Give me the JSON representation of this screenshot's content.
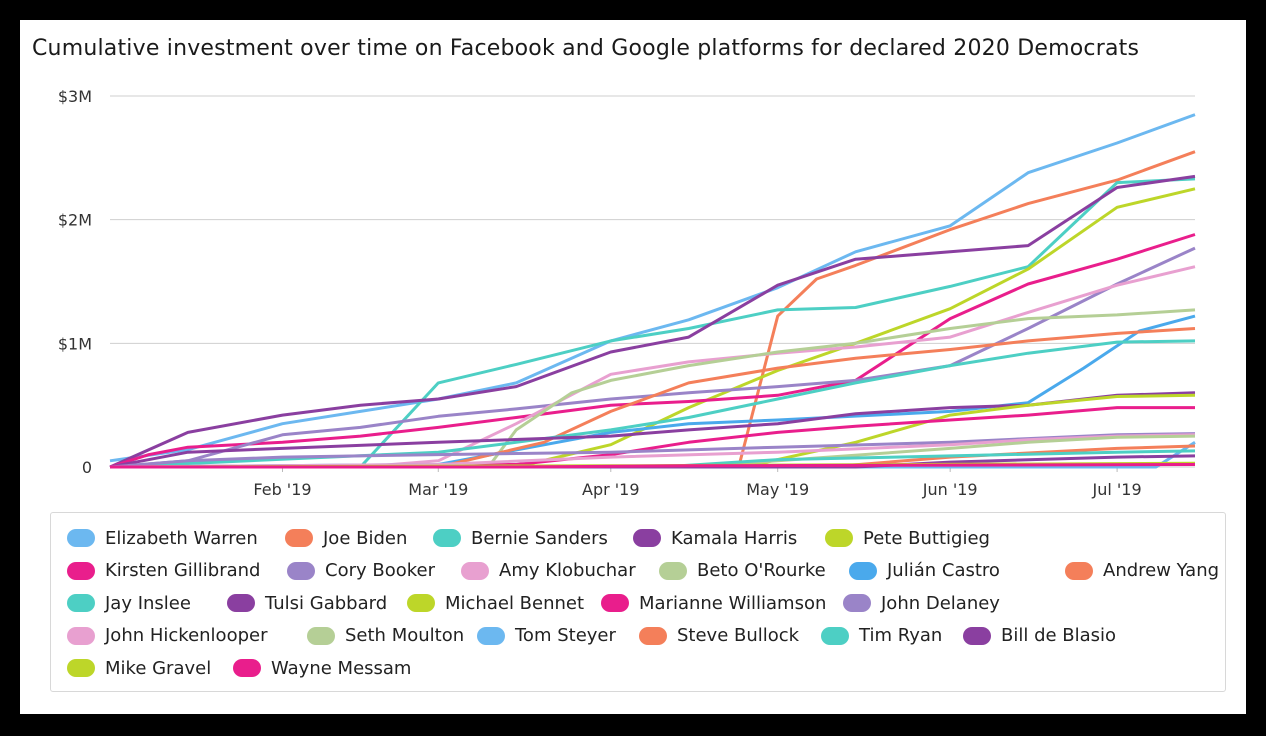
{
  "chart_data": {
    "type": "line",
    "title": "Cumulative investment over time on Facebook and Google platforms for declared 2020 Democrats",
    "x_ticks": [
      "Feb '19",
      "Mar '19",
      "Apr '19",
      "May '19",
      "Jun '19",
      "Jul '19"
    ],
    "y_ticks": [
      "0",
      "$1M",
      "$2M",
      "$3M"
    ],
    "ylim": [
      0,
      3000000
    ],
    "xlim": [
      "2019-01-01",
      "2019-07-15"
    ],
    "grid": "horizontal",
    "legend_position": "bottom",
    "series": [
      {
        "name": "Elizabeth Warren",
        "color": "#6cb8f0",
        "points": [
          [
            "2019-01-01",
            0.05
          ],
          [
            "2019-01-15",
            0.14
          ],
          [
            "2019-02-01",
            0.35
          ],
          [
            "2019-02-15",
            0.45
          ],
          [
            "2019-03-01",
            0.55
          ],
          [
            "2019-03-15",
            0.68
          ],
          [
            "2019-04-01",
            1.02
          ],
          [
            "2019-04-15",
            1.19
          ],
          [
            "2019-05-01",
            1.45
          ],
          [
            "2019-05-15",
            1.74
          ],
          [
            "2019-06-01",
            1.95
          ],
          [
            "2019-06-15",
            2.38
          ],
          [
            "2019-07-01",
            2.62
          ],
          [
            "2019-07-15",
            2.85
          ]
        ]
      },
      {
        "name": "Joe Biden",
        "color": "#f47f5a",
        "points": [
          [
            "2019-04-24",
            0
          ],
          [
            "2019-05-01",
            1.22
          ],
          [
            "2019-05-08",
            1.52
          ],
          [
            "2019-05-15",
            1.63
          ],
          [
            "2019-06-01",
            1.92
          ],
          [
            "2019-06-15",
            2.13
          ],
          [
            "2019-07-01",
            2.32
          ],
          [
            "2019-07-15",
            2.55
          ]
        ]
      },
      {
        "name": "Bernie Sanders",
        "color": "#4dcfc4",
        "points": [
          [
            "2019-01-01",
            0
          ],
          [
            "2019-02-15",
            0
          ],
          [
            "2019-03-01",
            0.68
          ],
          [
            "2019-03-15",
            0.83
          ],
          [
            "2019-04-01",
            1.02
          ],
          [
            "2019-04-15",
            1.12
          ],
          [
            "2019-05-01",
            1.27
          ],
          [
            "2019-05-15",
            1.29
          ],
          [
            "2019-06-01",
            1.46
          ],
          [
            "2019-06-15",
            1.62
          ],
          [
            "2019-07-01",
            2.3
          ],
          [
            "2019-07-15",
            2.33
          ]
        ]
      },
      {
        "name": "Kamala Harris",
        "color": "#8a3fa0",
        "points": [
          [
            "2019-01-01",
            0
          ],
          [
            "2019-01-15",
            0.28
          ],
          [
            "2019-02-01",
            0.42
          ],
          [
            "2019-02-15",
            0.5
          ],
          [
            "2019-03-01",
            0.55
          ],
          [
            "2019-03-15",
            0.65
          ],
          [
            "2019-04-01",
            0.93
          ],
          [
            "2019-04-15",
            1.05
          ],
          [
            "2019-05-01",
            1.47
          ],
          [
            "2019-05-15",
            1.68
          ],
          [
            "2019-06-01",
            1.74
          ],
          [
            "2019-06-15",
            1.79
          ],
          [
            "2019-07-01",
            2.26
          ],
          [
            "2019-07-15",
            2.35
          ]
        ]
      },
      {
        "name": "Pete Buttigieg",
        "color": "#bdd629",
        "points": [
          [
            "2019-01-01",
            0
          ],
          [
            "2019-03-15",
            0
          ],
          [
            "2019-04-01",
            0.18
          ],
          [
            "2019-04-15",
            0.48
          ],
          [
            "2019-05-01",
            0.78
          ],
          [
            "2019-05-15",
            1.0
          ],
          [
            "2019-06-01",
            1.28
          ],
          [
            "2019-06-15",
            1.6
          ],
          [
            "2019-07-01",
            2.1
          ],
          [
            "2019-07-15",
            2.25
          ]
        ]
      },
      {
        "name": "Kirsten Gillibrand",
        "color": "#e91e8c",
        "points": [
          [
            "2019-01-01",
            0
          ],
          [
            "2019-01-08",
            0.1
          ],
          [
            "2019-01-15",
            0.16
          ],
          [
            "2019-02-01",
            0.2
          ],
          [
            "2019-02-15",
            0.25
          ],
          [
            "2019-03-01",
            0.32
          ],
          [
            "2019-03-15",
            0.4
          ],
          [
            "2019-04-01",
            0.5
          ],
          [
            "2019-04-15",
            0.53
          ],
          [
            "2019-05-01",
            0.58
          ],
          [
            "2019-05-15",
            0.7
          ],
          [
            "2019-06-01",
            1.2
          ],
          [
            "2019-06-15",
            1.48
          ],
          [
            "2019-07-01",
            1.68
          ],
          [
            "2019-07-15",
            1.88
          ]
        ]
      },
      {
        "name": "Cory Booker",
        "color": "#9a84c8",
        "points": [
          [
            "2019-01-01",
            0
          ],
          [
            "2019-01-15",
            0.05
          ],
          [
            "2019-02-01",
            0.26
          ],
          [
            "2019-02-15",
            0.32
          ],
          [
            "2019-03-01",
            0.41
          ],
          [
            "2019-03-15",
            0.47
          ],
          [
            "2019-04-01",
            0.55
          ],
          [
            "2019-04-15",
            0.6
          ],
          [
            "2019-05-01",
            0.65
          ],
          [
            "2019-05-15",
            0.7
          ],
          [
            "2019-06-01",
            0.82
          ],
          [
            "2019-06-15",
            1.12
          ],
          [
            "2019-07-01",
            1.48
          ],
          [
            "2019-07-15",
            1.77
          ]
        ]
      },
      {
        "name": "Amy Klobuchar",
        "color": "#e8a0d0",
        "points": [
          [
            "2019-01-01",
            0
          ],
          [
            "2019-02-15",
            0
          ],
          [
            "2019-03-01",
            0.05
          ],
          [
            "2019-03-15",
            0.35
          ],
          [
            "2019-04-01",
            0.75
          ],
          [
            "2019-04-15",
            0.85
          ],
          [
            "2019-05-01",
            0.92
          ],
          [
            "2019-05-15",
            0.97
          ],
          [
            "2019-06-01",
            1.05
          ],
          [
            "2019-06-15",
            1.25
          ],
          [
            "2019-07-01",
            1.47
          ],
          [
            "2019-07-15",
            1.62
          ]
        ]
      },
      {
        "name": "Beto O'Rourke",
        "color": "#b5cf96",
        "points": [
          [
            "2019-03-10",
            0
          ],
          [
            "2019-03-15",
            0.3
          ],
          [
            "2019-03-25",
            0.6
          ],
          [
            "2019-04-01",
            0.7
          ],
          [
            "2019-04-15",
            0.82
          ],
          [
            "2019-05-01",
            0.93
          ],
          [
            "2019-05-15",
            1.0
          ],
          [
            "2019-06-01",
            1.12
          ],
          [
            "2019-06-15",
            1.2
          ],
          [
            "2019-07-01",
            1.23
          ],
          [
            "2019-07-15",
            1.27
          ]
        ]
      },
      {
        "name": "Julián Castro",
        "color": "#4aa9ec",
        "points": [
          [
            "2019-01-01",
            0
          ],
          [
            "2019-03-01",
            0.02
          ],
          [
            "2019-04-01",
            0.28
          ],
          [
            "2019-04-15",
            0.35
          ],
          [
            "2019-05-01",
            0.38
          ],
          [
            "2019-06-01",
            0.45
          ],
          [
            "2019-06-15",
            0.52
          ],
          [
            "2019-06-25",
            0.8
          ],
          [
            "2019-07-05",
            1.1
          ],
          [
            "2019-07-15",
            1.22
          ]
        ]
      },
      {
        "name": "Andrew Yang",
        "color": "#f47f5a",
        "points": [
          [
            "2019-01-01",
            0
          ],
          [
            "2019-03-01",
            0
          ],
          [
            "2019-03-20",
            0.2
          ],
          [
            "2019-04-01",
            0.45
          ],
          [
            "2019-04-15",
            0.68
          ],
          [
            "2019-05-01",
            0.8
          ],
          [
            "2019-05-15",
            0.88
          ],
          [
            "2019-06-01",
            0.95
          ],
          [
            "2019-06-15",
            1.02
          ],
          [
            "2019-07-01",
            1.08
          ],
          [
            "2019-07-15",
            1.12
          ]
        ]
      },
      {
        "name": "Jay Inslee",
        "color": "#4dcfc4",
        "points": [
          [
            "2019-01-01",
            0
          ],
          [
            "2019-03-01",
            0.12
          ],
          [
            "2019-03-15",
            0.2
          ],
          [
            "2019-04-01",
            0.3
          ],
          [
            "2019-04-15",
            0.4
          ],
          [
            "2019-05-01",
            0.55
          ],
          [
            "2019-05-15",
            0.68
          ],
          [
            "2019-06-01",
            0.82
          ],
          [
            "2019-06-15",
            0.92
          ],
          [
            "2019-07-01",
            1.01
          ],
          [
            "2019-07-15",
            1.02
          ]
        ]
      },
      {
        "name": "Tulsi Gabbard",
        "color": "#8a3fa0",
        "points": [
          [
            "2019-01-01",
            0
          ],
          [
            "2019-01-15",
            0.12
          ],
          [
            "2019-02-01",
            0.15
          ],
          [
            "2019-03-01",
            0.2
          ],
          [
            "2019-04-01",
            0.25
          ],
          [
            "2019-04-15",
            0.3
          ],
          [
            "2019-05-01",
            0.35
          ],
          [
            "2019-05-15",
            0.43
          ],
          [
            "2019-06-01",
            0.48
          ],
          [
            "2019-06-15",
            0.5
          ],
          [
            "2019-07-01",
            0.58
          ],
          [
            "2019-07-15",
            0.6
          ]
        ]
      },
      {
        "name": "Michael Bennet",
        "color": "#bdd629",
        "points": [
          [
            "2019-01-01",
            0
          ],
          [
            "2019-04-25",
            0
          ],
          [
            "2019-05-15",
            0.2
          ],
          [
            "2019-06-01",
            0.42
          ],
          [
            "2019-06-15",
            0.5
          ],
          [
            "2019-07-01",
            0.57
          ],
          [
            "2019-07-15",
            0.58
          ]
        ]
      },
      {
        "name": "Marianne Williamson",
        "color": "#e91e8c",
        "points": [
          [
            "2019-01-01",
            0
          ],
          [
            "2019-03-15",
            0.02
          ],
          [
            "2019-04-01",
            0.1
          ],
          [
            "2019-04-15",
            0.2
          ],
          [
            "2019-05-01",
            0.28
          ],
          [
            "2019-05-15",
            0.33
          ],
          [
            "2019-06-01",
            0.38
          ],
          [
            "2019-06-15",
            0.42
          ],
          [
            "2019-07-01",
            0.48
          ],
          [
            "2019-07-15",
            0.48
          ]
        ]
      },
      {
        "name": "John Delaney",
        "color": "#9a84c8",
        "points": [
          [
            "2019-01-01",
            0
          ],
          [
            "2019-01-15",
            0.05
          ],
          [
            "2019-02-01",
            0.08
          ],
          [
            "2019-03-01",
            0.1
          ],
          [
            "2019-04-01",
            0.12
          ],
          [
            "2019-05-01",
            0.16
          ],
          [
            "2019-06-01",
            0.2
          ],
          [
            "2019-06-15",
            0.23
          ],
          [
            "2019-07-01",
            0.26
          ],
          [
            "2019-07-15",
            0.27
          ]
        ]
      },
      {
        "name": "John Hickenlooper",
        "color": "#e8a0d0",
        "points": [
          [
            "2019-01-01",
            0
          ],
          [
            "2019-03-01",
            0.02
          ],
          [
            "2019-04-01",
            0.08
          ],
          [
            "2019-05-01",
            0.12
          ],
          [
            "2019-06-01",
            0.18
          ],
          [
            "2019-06-15",
            0.22
          ],
          [
            "2019-07-01",
            0.25
          ],
          [
            "2019-07-15",
            0.26
          ]
        ]
      },
      {
        "name": "Seth Moulton",
        "color": "#b5cf96",
        "points": [
          [
            "2019-01-01",
            0
          ],
          [
            "2019-04-15",
            0
          ],
          [
            "2019-05-01",
            0.05
          ],
          [
            "2019-06-01",
            0.15
          ],
          [
            "2019-06-15",
            0.2
          ],
          [
            "2019-07-01",
            0.24
          ],
          [
            "2019-07-15",
            0.25
          ]
        ]
      },
      {
        "name": "Tom Steyer",
        "color": "#6cb8f0",
        "points": [
          [
            "2019-01-01",
            0
          ],
          [
            "2019-07-08",
            0
          ],
          [
            "2019-07-15",
            0.2
          ]
        ]
      },
      {
        "name": "Steve Bullock",
        "color": "#f47f5a",
        "points": [
          [
            "2019-01-01",
            0
          ],
          [
            "2019-05-10",
            0
          ],
          [
            "2019-06-01",
            0.08
          ],
          [
            "2019-07-01",
            0.15
          ],
          [
            "2019-07-15",
            0.17
          ]
        ]
      },
      {
        "name": "Tim Ryan",
        "color": "#4dcfc4",
        "points": [
          [
            "2019-01-01",
            0
          ],
          [
            "2019-04-10",
            0
          ],
          [
            "2019-05-01",
            0.06
          ],
          [
            "2019-06-01",
            0.09
          ],
          [
            "2019-07-01",
            0.12
          ],
          [
            "2019-07-15",
            0.13
          ]
        ]
      },
      {
        "name": "Bill de Blasio",
        "color": "#8a3fa0",
        "points": [
          [
            "2019-01-01",
            0
          ],
          [
            "2019-05-15",
            0
          ],
          [
            "2019-06-01",
            0.04
          ],
          [
            "2019-07-01",
            0.08
          ],
          [
            "2019-07-15",
            0.09
          ]
        ]
      },
      {
        "name": "Mike Gravel",
        "color": "#bdd629",
        "points": [
          [
            "2019-01-01",
            0
          ],
          [
            "2019-04-01",
            0.01
          ],
          [
            "2019-07-15",
            0.03
          ]
        ]
      },
      {
        "name": "Wayne Messam",
        "color": "#e91e8c",
        "points": [
          [
            "2019-01-01",
            0
          ],
          [
            "2019-03-15",
            0
          ],
          [
            "2019-04-15",
            0.01
          ],
          [
            "2019-07-15",
            0.02
          ]
        ]
      }
    ]
  }
}
